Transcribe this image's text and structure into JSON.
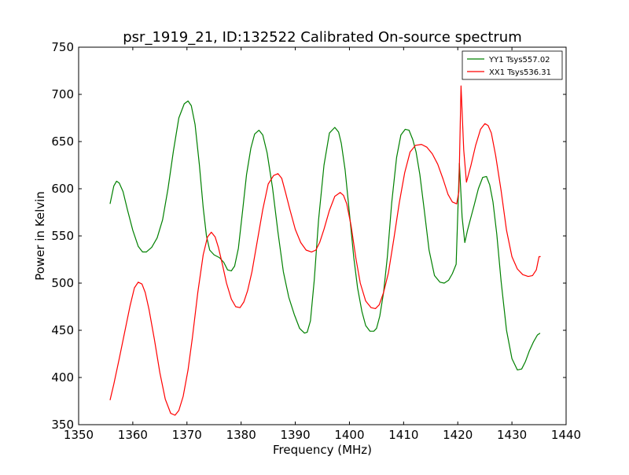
{
  "chart_data": {
    "type": "line",
    "title": "psr_1919_21, ID:132522 Calibrated On-source spectrum",
    "xlabel": "Frequency (MHz)",
    "ylabel": "Power in Kelvin",
    "xlim": [
      1350,
      1440
    ],
    "ylim": [
      350,
      750
    ],
    "xticks": [
      1350,
      1360,
      1370,
      1380,
      1390,
      1400,
      1410,
      1420,
      1430,
      1440
    ],
    "yticks": [
      350,
      400,
      450,
      500,
      550,
      600,
      650,
      700,
      750
    ],
    "grid": false,
    "legend_position": "top-right",
    "series": [
      {
        "name": "YY1 Tsys557.02",
        "color": "#008000",
        "x": [
          1355.8,
          1356.5,
          1357.0,
          1357.5,
          1358.2,
          1359.0,
          1360.0,
          1361.0,
          1361.8,
          1362.5,
          1363.5,
          1364.5,
          1365.5,
          1366.5,
          1367.5,
          1368.5,
          1369.5,
          1370.2,
          1370.8,
          1371.5,
          1372.3,
          1373.0,
          1373.6,
          1374.2,
          1375.0,
          1376.0,
          1376.8,
          1377.5,
          1378.2,
          1378.8,
          1379.5,
          1380.3,
          1381.0,
          1381.8,
          1382.5,
          1383.3,
          1384.0,
          1384.8,
          1385.8,
          1386.8,
          1387.8,
          1388.8,
          1389.8,
          1390.8,
          1391.7,
          1392.2,
          1392.8,
          1393.5,
          1394.3,
          1395.3,
          1396.3,
          1397.3,
          1398.0,
          1398.5,
          1399.2,
          1400.0,
          1400.8,
          1401.5,
          1402.3,
          1403.0,
          1403.8,
          1404.5,
          1405.0,
          1405.6,
          1406.3,
          1407.0,
          1407.8,
          1408.7,
          1409.5,
          1410.3,
          1411.0,
          1411.7,
          1412.3,
          1413.0,
          1413.8,
          1414.7,
          1415.7,
          1416.7,
          1417.5,
          1418.3,
          1419.0,
          1419.7,
          1420.3,
          1420.8,
          1421.3,
          1421.8,
          1422.3,
          1423.0,
          1423.8,
          1424.6,
          1425.3,
          1425.9,
          1426.5,
          1427.2,
          1428.0,
          1429.0,
          1430.0,
          1431.0,
          1431.8,
          1432.5,
          1433.2,
          1434.0,
          1434.7,
          1435.2
        ],
        "y": [
          584,
          603,
          608,
          606,
          597,
          578,
          556,
          539,
          533,
          533,
          538,
          548,
          567,
          600,
          640,
          675,
          690,
          693,
          688,
          668,
          625,
          580,
          550,
          535,
          530,
          527,
          522,
          514,
          513,
          518,
          537,
          578,
          615,
          643,
          658,
          662,
          657,
          638,
          601,
          554,
          512,
          485,
          467,
          452,
          447,
          448,
          460,
          503,
          567,
          625,
          659,
          665,
          660,
          648,
          620,
          574,
          527,
          495,
          470,
          455,
          449,
          449,
          452,
          465,
          490,
          528,
          585,
          633,
          657,
          663,
          662,
          652,
          639,
          615,
          578,
          535,
          508,
          501,
          500,
          503,
          510,
          520,
          627,
          570,
          543,
          556,
          567,
          582,
          600,
          612,
          613,
          604,
          586,
          552,
          502,
          450,
          420,
          408,
          409,
          417,
          428,
          438,
          445,
          447
        ]
      },
      {
        "name": "XX1 Tsys536.31",
        "color": "#ff0000",
        "x": [
          1355.8,
          1356.5,
          1357.5,
          1358.5,
          1359.5,
          1360.3,
          1361.0,
          1361.7,
          1362.3,
          1363.0,
          1364.0,
          1365.0,
          1366.0,
          1367.0,
          1367.8,
          1368.5,
          1369.3,
          1370.2,
          1371.0,
          1372.0,
          1373.0,
          1373.8,
          1374.5,
          1375.2,
          1375.8,
          1376.5,
          1377.3,
          1378.2,
          1379.0,
          1379.8,
          1380.5,
          1381.2,
          1382.0,
          1383.0,
          1384.0,
          1385.0,
          1386.0,
          1386.8,
          1387.5,
          1388.2,
          1389.0,
          1390.0,
          1391.0,
          1392.0,
          1393.0,
          1393.8,
          1394.5,
          1395.3,
          1396.3,
          1397.3,
          1398.3,
          1398.9,
          1399.5,
          1400.3,
          1401.2,
          1402.0,
          1403.0,
          1404.0,
          1404.8,
          1405.5,
          1406.3,
          1407.2,
          1408.2,
          1409.2,
          1410.2,
          1411.2,
          1412.2,
          1413.3,
          1414.3,
          1415.3,
          1416.3,
          1417.3,
          1418.2,
          1419.0,
          1419.8,
          1420.2,
          1420.6,
          1421.1,
          1421.6,
          1422.4,
          1423.3,
          1424.2,
          1425.0,
          1425.6,
          1426.2,
          1427.0,
          1428.0,
          1429.0,
          1430.0,
          1431.0,
          1432.0,
          1433.0,
          1433.8,
          1434.5,
          1435.0,
          1435.3
        ],
        "y": [
          376,
          393,
          420,
          448,
          476,
          495,
          501,
          499,
          490,
          472,
          440,
          405,
          377,
          362,
          360,
          365,
          380,
          408,
          442,
          490,
          530,
          549,
          554,
          549,
          538,
          521,
          500,
          483,
          475,
          474,
          480,
          492,
          512,
          545,
          578,
          605,
          614,
          616,
          611,
          596,
          578,
          557,
          543,
          535,
          533,
          535,
          543,
          557,
          577,
          592,
          596,
          593,
          584,
          561,
          526,
          500,
          481,
          474,
          473,
          477,
          490,
          511,
          547,
          585,
          617,
          639,
          646,
          647,
          644,
          637,
          626,
          610,
          594,
          586,
          584,
          597,
          709,
          641,
          607,
          624,
          646,
          663,
          669,
          667,
          659,
          635,
          598,
          556,
          528,
          515,
          509,
          507,
          508,
          514,
          528,
          528
        ]
      }
    ]
  }
}
